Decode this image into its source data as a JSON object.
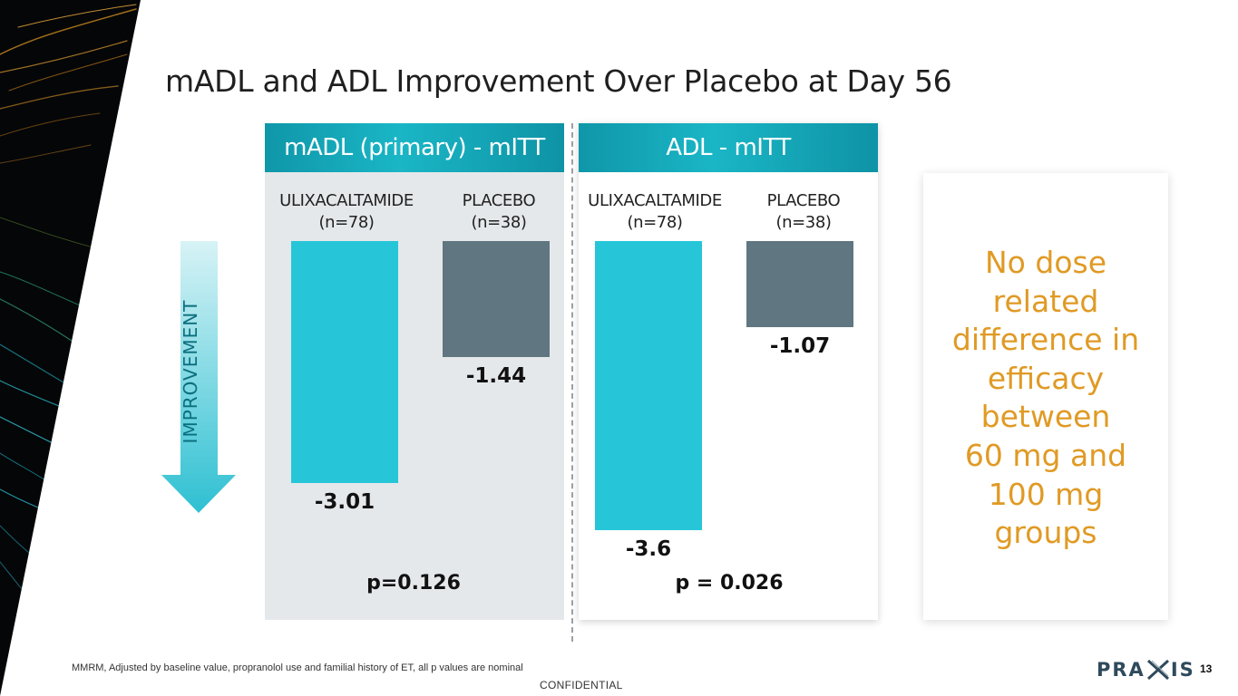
{
  "title": "mADL and ADL Improvement Over Placebo at Day 56",
  "arrow_label": "IMPROVEMENT",
  "note": "No dose related difference in efficacy between 60 mg and 100 mg groups",
  "note_lines": [
    "No dose",
    "related",
    "difference in",
    "efficacy",
    "between",
    "60 mg and",
    "100 mg",
    "groups"
  ],
  "footnote": "MMRM, Adjusted by baseline value, propranolol use and familial history of ET, all p values are nominal",
  "confidential": "CONFIDENTIAL",
  "logo": {
    "left": "PRA",
    "right": "IS"
  },
  "page_number": "13",
  "colors": {
    "drug": "#26c6d8",
    "placebo": "#607680",
    "note": "#e09a24",
    "header": "#1ab6c6"
  },
  "chart_data": [
    {
      "type": "bar",
      "title": "mADL (primary) - mITT",
      "categories": [
        "ULIXACALTAMIDE",
        "PLACEBO"
      ],
      "category_n": [
        "(n=78)",
        "(n=38)"
      ],
      "values": [
        -3.01,
        -1.44
      ],
      "value_labels": [
        "-3.01",
        "-1.44"
      ],
      "p_value": "p=0.126",
      "ylim": [
        -3.6,
        0
      ]
    },
    {
      "type": "bar",
      "title": "ADL - mITT",
      "categories": [
        "ULIXACALTAMIDE",
        "PLACEBO"
      ],
      "category_n": [
        "(n=78)",
        "(n=38)"
      ],
      "values": [
        -3.6,
        -1.07
      ],
      "value_labels": [
        "-3.6",
        "-1.07"
      ],
      "p_value": "p = 0.026",
      "ylim": [
        -3.6,
        0
      ]
    }
  ]
}
